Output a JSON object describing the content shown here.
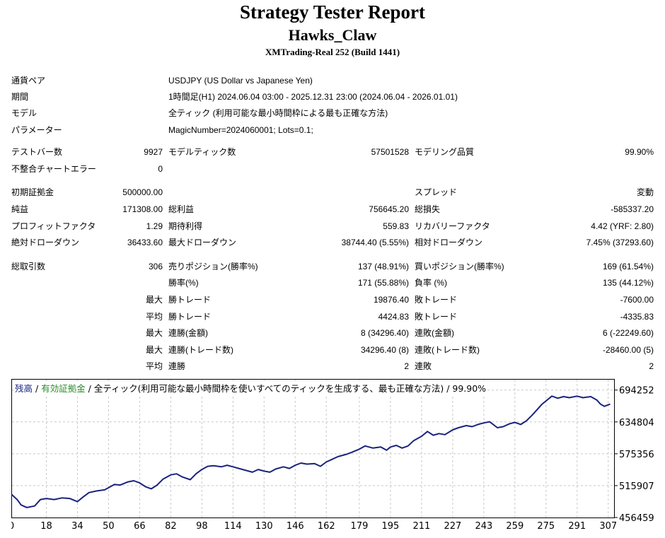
{
  "header": {
    "title": "Strategy Tester Report",
    "subtitle": "Hawks_Claw",
    "build": "XMTrading-Real 252 (Build 1441)"
  },
  "settings": {
    "symbol_label": "通貨ペア",
    "symbol_value": "USDJPY (US Dollar vs Japanese Yen)",
    "period_label": "期間",
    "period_value": "1時間足(H1) 2024.06.04 03:00 - 2025.12.31 23:00 (2024.06.04 - 2026.01.01)",
    "model_label": "モデル",
    "model_value": "全ティック (利用可能な最小時間枠による最も正確な方法)",
    "params_label": "パラメーター",
    "params_value": "MagicNumber=2024060001; Lots=0.1;"
  },
  "bars": {
    "bars_label": "テストバー数",
    "bars_value": "9927",
    "ticks_label": "モデルティック数",
    "ticks_value": "57501528",
    "quality_label": "モデリング品質",
    "quality_value": "99.90%",
    "mismatch_label": "不整合チャートエラー",
    "mismatch_value": "0"
  },
  "results": {
    "deposit_label": "初期証拠金",
    "deposit_value": "500000.00",
    "spread_label": "スプレッド",
    "spread_value": "変動",
    "net_label": "純益",
    "net_value": "171308.00",
    "gross_profit_label": "総利益",
    "gross_profit_value": "756645.20",
    "gross_loss_label": "総損失",
    "gross_loss_value": "-585337.20",
    "pf_label": "プロフィットファクタ",
    "pf_value": "1.29",
    "expected_label": "期待利得",
    "expected_value": "559.83",
    "recovery_label": "リカバリーファクタ",
    "recovery_value": "4.42 (YRF: 2.80)",
    "abs_dd_label": "絶対ドローダウン",
    "abs_dd_value": "36433.60",
    "max_dd_label": "最大ドローダウン",
    "max_dd_value": "38744.40 (5.55%)",
    "rel_dd_label": "相対ドローダウン",
    "rel_dd_value": "7.45% (37293.60)"
  },
  "trades": {
    "total_label": "総取引数",
    "total_value": "306",
    "short_label": "売りポジション(勝率%)",
    "short_value": "137 (48.91%)",
    "long_label": "買いポジション(勝率%)",
    "long_value": "169 (61.54%)",
    "win_pct_label": "勝率(%)",
    "win_pct_value": "171 (55.88%)",
    "loss_pct_label": "負率 (%)",
    "loss_pct_value": "135 (44.12%)",
    "max_label": "最大",
    "avg_label": "平均",
    "largest_win_label": "勝トレード",
    "largest_win_value": "19876.40",
    "largest_loss_label": "敗トレード",
    "largest_loss_value": "-7600.00",
    "avg_win_label": "勝トレード",
    "avg_win_value": "4424.83",
    "avg_loss_label": "敗トレード",
    "avg_loss_value": "-4335.83",
    "max_cons_win_label": "連勝(金額)",
    "max_cons_win_value": "8 (34296.40)",
    "max_cons_loss_label": "連敗(金額)",
    "max_cons_loss_value": "6 (-22249.60)",
    "max_cons_profit_label": "連勝(トレード数)",
    "max_cons_profit_value": "34296.40 (8)",
    "max_cons_lossamt_label": "連敗(トレード数)",
    "max_cons_lossamt_value": "-28460.00 (5)",
    "avg_cons_win_label": "連勝",
    "avg_cons_win_value": "2",
    "avg_cons_loss_label": "連敗",
    "avg_cons_loss_value": "2"
  },
  "legend": {
    "balance": "残高",
    "sep": " / ",
    "equity": "有効証拠金",
    "rest": " / 全ティック(利用可能な最小時間枠を使いすべてのティックを生成する、最も正確な方法) / 99.90%"
  },
  "colors": {
    "balance_line": "#1a237e",
    "equity_text": "#2e8b2e",
    "grid": "#c8c8c8"
  },
  "chart_data": {
    "type": "line",
    "x_ticks": [
      0,
      18,
      34,
      50,
      66,
      82,
      98,
      114,
      130,
      146,
      162,
      179,
      195,
      211,
      227,
      243,
      259,
      275,
      291,
      307
    ],
    "y_ticks": [
      694252,
      634804,
      575356,
      515907,
      456459
    ],
    "xlim": [
      0,
      310
    ],
    "ylim": [
      456459,
      715000
    ],
    "grid": true,
    "series": [
      {
        "name": "残高",
        "points": [
          [
            0,
            500000
          ],
          [
            3,
            490000
          ],
          [
            5,
            480000
          ],
          [
            8,
            475000
          ],
          [
            12,
            478000
          ],
          [
            15,
            490000
          ],
          [
            18,
            492000
          ],
          [
            22,
            490000
          ],
          [
            26,
            493000
          ],
          [
            30,
            492000
          ],
          [
            34,
            486000
          ],
          [
            37,
            495000
          ],
          [
            40,
            503000
          ],
          [
            44,
            506000
          ],
          [
            48,
            508000
          ],
          [
            50,
            512000
          ],
          [
            53,
            518000
          ],
          [
            56,
            517000
          ],
          [
            60,
            523000
          ],
          [
            63,
            525000
          ],
          [
            66,
            521000
          ],
          [
            69,
            514000
          ],
          [
            72,
            510000
          ],
          [
            75,
            517000
          ],
          [
            78,
            528000
          ],
          [
            82,
            536000
          ],
          [
            85,
            538000
          ],
          [
            88,
            532000
          ],
          [
            92,
            527000
          ],
          [
            95,
            538000
          ],
          [
            98,
            546000
          ],
          [
            101,
            552000
          ],
          [
            104,
            553000
          ],
          [
            108,
            551000
          ],
          [
            111,
            554000
          ],
          [
            114,
            551000
          ],
          [
            117,
            548000
          ],
          [
            120,
            545000
          ],
          [
            124,
            541000
          ],
          [
            127,
            546000
          ],
          [
            130,
            543000
          ],
          [
            133,
            541000
          ],
          [
            136,
            547000
          ],
          [
            140,
            551000
          ],
          [
            143,
            548000
          ],
          [
            146,
            554000
          ],
          [
            149,
            558000
          ],
          [
            152,
            556000
          ],
          [
            156,
            557000
          ],
          [
            159,
            552000
          ],
          [
            162,
            560000
          ],
          [
            165,
            565000
          ],
          [
            168,
            570000
          ],
          [
            172,
            574000
          ],
          [
            175,
            578000
          ],
          [
            179,
            584000
          ],
          [
            182,
            590000
          ],
          [
            186,
            586000
          ],
          [
            190,
            588000
          ],
          [
            193,
            582000
          ],
          [
            195,
            588000
          ],
          [
            198,
            591000
          ],
          [
            201,
            586000
          ],
          [
            204,
            590000
          ],
          [
            207,
            600000
          ],
          [
            211,
            608000
          ],
          [
            214,
            617000
          ],
          [
            217,
            610000
          ],
          [
            220,
            613000
          ],
          [
            223,
            611000
          ],
          [
            227,
            620000
          ],
          [
            230,
            624000
          ],
          [
            234,
            628000
          ],
          [
            237,
            626000
          ],
          [
            240,
            630000
          ],
          [
            243,
            633000
          ],
          [
            246,
            635000
          ],
          [
            250,
            624000
          ],
          [
            253,
            626000
          ],
          [
            256,
            631000
          ],
          [
            259,
            634000
          ],
          [
            262,
            630000
          ],
          [
            265,
            637000
          ],
          [
            268,
            648000
          ],
          [
            271,
            660000
          ],
          [
            273,
            668000
          ],
          [
            275,
            674000
          ],
          [
            278,
            683000
          ],
          [
            281,
            679000
          ],
          [
            284,
            682000
          ],
          [
            287,
            680000
          ],
          [
            291,
            683000
          ],
          [
            294,
            680000
          ],
          [
            298,
            682000
          ],
          [
            301,
            676000
          ],
          [
            303,
            668000
          ],
          [
            305,
            664000
          ],
          [
            308,
            668000
          ]
        ]
      }
    ]
  }
}
